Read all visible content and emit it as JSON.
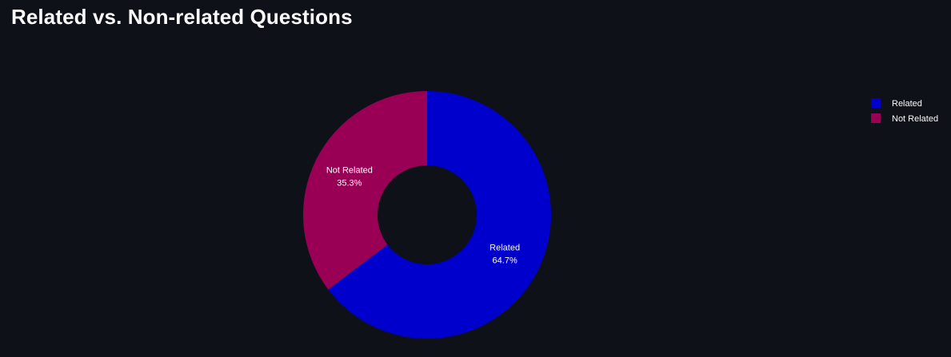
{
  "page": {
    "title": "Related vs. Non-related Questions"
  },
  "chart_data": {
    "type": "pie",
    "hole": true,
    "start": "12 o'clock, clockwise",
    "slices": [
      {
        "label": "Related",
        "value": 64.7,
        "display": "64.7%",
        "color": "#0000cd"
      },
      {
        "label": "Not Related",
        "value": 35.3,
        "display": "35.3%",
        "color": "#990055"
      }
    ],
    "legend": {
      "placement": "top-right",
      "entries": [
        "Related",
        "Not Related"
      ]
    }
  },
  "theme": {
    "background": "#0e1117",
    "text": "#fafafa"
  }
}
